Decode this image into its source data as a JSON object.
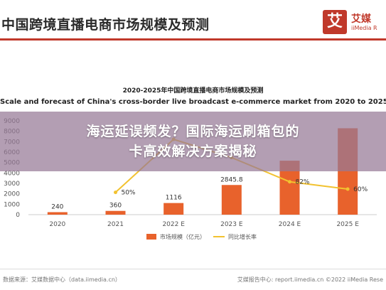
{
  "page": {
    "main_title": "中国跨境直播电商市场规模及预测",
    "logo": {
      "mark": "艾",
      "name_cn": "艾媒",
      "name_en": "iiMedia R"
    },
    "banner_lines": [
      "海运延误频发？国际海运刷箱包的",
      "卡高效解决方案揭秘"
    ],
    "footer_left": "数据来源：艾媒数据中心（data.iimedia.cn）",
    "footer_right": "艾媒报告中心: report.iimedia.cn ©2022 iiMedia Rese"
  },
  "chart_data": {
    "type": "bar",
    "title": "2020-2025年中国跨境直播电商市场规模及预测",
    "subtitle": "Scale and forecast of China's cross-border live broadcast e-commerce market from 2020 to 2025",
    "categories": [
      "2020",
      "2021",
      "2022 E",
      "2023 E",
      "2024 E",
      "2025 E"
    ],
    "y_ticks": [
      "0",
      "1000",
      "2000",
      "3000",
      "4000",
      "5000",
      "6000",
      "7000",
      "8000",
      "9000"
    ],
    "ylim": [
      0,
      9000
    ],
    "series": [
      {
        "name": "市场规模（亿元）",
        "kind": "bar",
        "color": "#e8622c",
        "values": [
          240,
          360,
          1116,
          2845.8,
          5176,
          8287
        ],
        "labels": [
          "240",
          "360",
          "1116",
          "2845.8",
          "",
          ""
        ]
      },
      {
        "name": "同比增长率",
        "kind": "line",
        "color": "#f2c230",
        "values": [
          null,
          50,
          210,
          155,
          82,
          60
        ],
        "labels": [
          "",
          "50%",
          "",
          "",
          "82%",
          "60%"
        ]
      }
    ],
    "legend_position": "bottom",
    "grid": false
  }
}
